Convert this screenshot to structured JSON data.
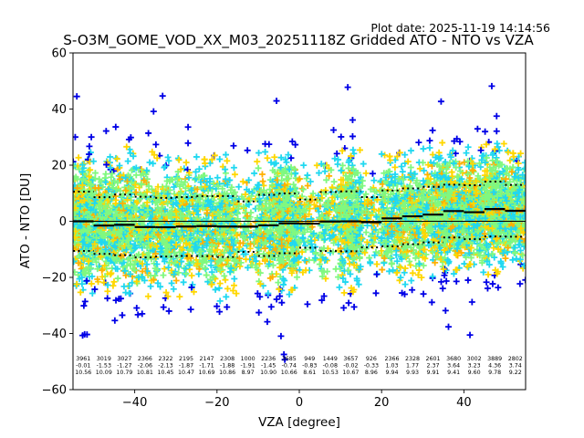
{
  "plot_date": "Plot date: 2025-11-19 14:14:56",
  "chart_data": {
    "type": "scatter",
    "title": "S-O3M_GOME_VOD_XX_M03_20251118Z Gridded ATO - NTO vs VZA",
    "xlabel": "VZA [degree]",
    "ylabel": "ATO - NTO [DU]",
    "xlim": [
      -55,
      55
    ],
    "ylim": [
      -60,
      60
    ],
    "xticks": [
      -40,
      -20,
      0,
      20,
      40
    ],
    "xtick_labels": [
      "−40",
      "−20",
      "0",
      "20",
      "40"
    ],
    "yticks": [
      -60,
      -40,
      -20,
      0,
      20,
      40,
      60
    ],
    "ytick_labels": [
      "−60",
      "−40",
      "−20",
      "0",
      "20",
      "40",
      "60"
    ],
    "grid": false,
    "marker": "+",
    "marker_colors": [
      "#0000e6",
      "#20d8f0",
      "#80f880",
      "#ffd700",
      "#ffb000"
    ],
    "reference_line": 0,
    "bin_width": 5,
    "bin_centers": [
      -52.5,
      -47.5,
      -42.5,
      -37.5,
      -32.5,
      -27.5,
      -22.5,
      -17.5,
      -12.5,
      -7.5,
      -2.5,
      2.5,
      7.5,
      12.5,
      17.5,
      22.5,
      27.5,
      32.5,
      37.5,
      42.5,
      47.5,
      52.5
    ],
    "counts": [
      "3961",
      "3019",
      "3027",
      "2366",
      "2322",
      "2195",
      "2147",
      "2308",
      "1000",
      "2236",
      "3685",
      "949",
      "1449",
      "3657",
      "926",
      "2366",
      "2328",
      "2601",
      "3680",
      "3002",
      "3889",
      "2802"
    ],
    "mean": [
      "-0.01",
      "-1.53",
      "-1.27",
      "-2.06",
      "-2.13",
      "-1.87",
      "-1.71",
      "-1.88",
      "-1.91",
      "-1.45",
      "-0.74",
      "-0.83",
      "-0.08",
      "-0.02",
      "-0.33",
      "1.03",
      "1.77",
      "2.37",
      "3.64",
      "3.23",
      "4.36",
      "3.74"
    ],
    "std": [
      "10.56",
      "10.09",
      "10.79",
      "10.81",
      "10.45",
      "10.47",
      "10.69",
      "10.86",
      "8.97",
      "10.90",
      "10.66",
      "8.61",
      "10.53",
      "10.67",
      "8.96",
      "9.94",
      "9.93",
      "9.91",
      "9.41",
      "9.60",
      "9.78",
      "9.22"
    ]
  }
}
